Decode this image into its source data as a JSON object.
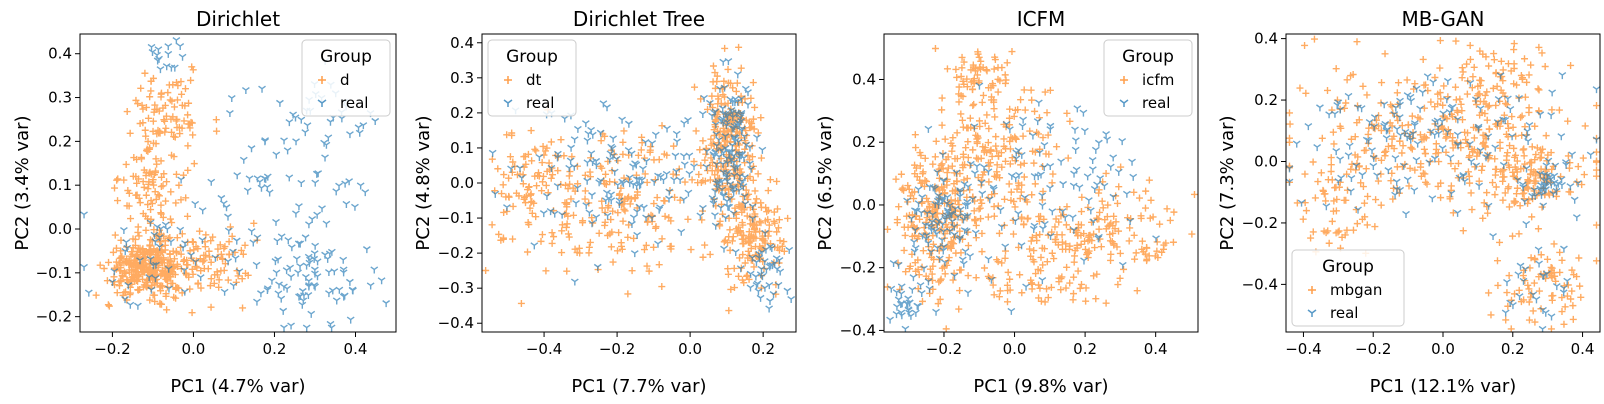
{
  "colors": {
    "synthetic": "#ff7f0e",
    "real": "#1f77b4"
  },
  "chart_data": [
    {
      "type": "scatter",
      "title": "Dirichlet",
      "xlabel": "PC1 (4.7% var)",
      "ylabel": "PC2 (3.4% var)",
      "xlim": [
        -0.28,
        0.5
      ],
      "ylim": [
        -0.235,
        0.445
      ],
      "xticks": [
        -0.2,
        0.0,
        0.2,
        0.4
      ],
      "xtick_labels": [
        "−0.2",
        "0.0",
        "0.2",
        "0.4"
      ],
      "yticks": [
        -0.2,
        -0.1,
        0.0,
        0.1,
        0.2,
        0.3,
        0.4
      ],
      "ytick_labels": [
        "−0.2",
        "−0.1",
        "0.0",
        "0.1",
        "0.2",
        "0.3",
        "0.4"
      ],
      "legend": {
        "title": "Group",
        "location": "upper right",
        "entries": [
          "d",
          "real"
        ]
      },
      "series": [
        {
          "name": "d",
          "marker": "plus",
          "color": "#ff7f0e",
          "clusters": [
            {
              "n": 320,
              "cx": -0.11,
              "cy": -0.09,
              "sx": 0.05,
              "sy": 0.03
            },
            {
              "n": 140,
              "cx": -0.1,
              "cy": 0.12,
              "sx": 0.04,
              "sy": 0.1
            },
            {
              "n": 80,
              "cx": 0.04,
              "cy": -0.07,
              "sx": 0.05,
              "sy": 0.05
            },
            {
              "n": 50,
              "cx": -0.05,
              "cy": 0.27,
              "sx": 0.05,
              "sy": 0.05
            }
          ]
        },
        {
          "name": "real",
          "marker": "tri_down",
          "color": "#1f77b4",
          "clusters": [
            {
              "n": 90,
              "cx": 0.22,
              "cy": 0.05,
              "sx": 0.12,
              "sy": 0.13
            },
            {
              "n": 60,
              "cx": 0.32,
              "cy": -0.12,
              "sx": 0.08,
              "sy": 0.05
            },
            {
              "n": 40,
              "cx": -0.08,
              "cy": -0.06,
              "sx": 0.08,
              "sy": 0.06
            },
            {
              "n": 15,
              "cx": -0.06,
              "cy": 0.4,
              "sx": 0.02,
              "sy": 0.02
            },
            {
              "n": 30,
              "cx": 0.28,
              "cy": 0.25,
              "sx": 0.08,
              "sy": 0.05
            }
          ]
        }
      ]
    },
    {
      "type": "scatter",
      "title": "Dirichlet Tree",
      "xlabel": "PC1 (7.7% var)",
      "ylabel": "PC2 (4.8% var)",
      "xlim": [
        -0.57,
        0.29
      ],
      "ylim": [
        -0.425,
        0.425
      ],
      "xticks": [
        -0.4,
        -0.2,
        0.0,
        0.2
      ],
      "xtick_labels": [
        "−0.4",
        "−0.2",
        "0.0",
        "0.2"
      ],
      "yticks": [
        -0.4,
        -0.3,
        -0.2,
        -0.1,
        0.0,
        0.1,
        0.2,
        0.3,
        0.4
      ],
      "ytick_labels": [
        "−0.4",
        "−0.3",
        "−0.2",
        "−0.1",
        "0.0",
        "0.1",
        "0.2",
        "0.3",
        "0.4"
      ],
      "legend": {
        "title": "Group",
        "location": "upper left",
        "entries": [
          "dt",
          "real"
        ]
      },
      "series": [
        {
          "name": "dt",
          "marker": "plus",
          "color": "#ff7f0e",
          "clusters": [
            {
              "n": 220,
              "cx": 0.11,
              "cy": 0.12,
              "sx": 0.035,
              "sy": 0.1
            },
            {
              "n": 160,
              "cx": 0.17,
              "cy": -0.15,
              "sx": 0.04,
              "sy": 0.08
            },
            {
              "n": 230,
              "cx": -0.2,
              "cy": -0.05,
              "sx": 0.16,
              "sy": 0.1
            },
            {
              "n": 60,
              "cx": -0.45,
              "cy": 0.0,
              "sx": 0.05,
              "sy": 0.07
            }
          ]
        },
        {
          "name": "real",
          "marker": "tri_down",
          "color": "#1f77b4",
          "clusters": [
            {
              "n": 130,
              "cx": 0.11,
              "cy": 0.1,
              "sx": 0.035,
              "sy": 0.1
            },
            {
              "n": 40,
              "cx": 0.2,
              "cy": -0.25,
              "sx": 0.03,
              "sy": 0.05
            },
            {
              "n": 140,
              "cx": -0.2,
              "cy": 0.0,
              "sx": 0.15,
              "sy": 0.1
            }
          ]
        }
      ]
    },
    {
      "type": "scatter",
      "title": "ICFM",
      "xlabel": "PC1 (9.8% var)",
      "ylabel": "PC2 (6.5% var)",
      "xlim": [
        -0.37,
        0.52
      ],
      "ylim": [
        -0.405,
        0.545
      ],
      "xticks": [
        -0.2,
        0.0,
        0.2,
        0.4
      ],
      "xtick_labels": [
        "−0.2",
        "0.0",
        "0.2",
        "0.4"
      ],
      "yticks": [
        -0.4,
        -0.2,
        0.0,
        0.2,
        0.4
      ],
      "ytick_labels": [
        "−0.4",
        "−0.2",
        "0.0",
        "0.2",
        "0.4"
      ],
      "legend": {
        "title": "Group",
        "location": "upper right",
        "entries": [
          "icfm",
          "real"
        ]
      },
      "series": [
        {
          "name": "icfm",
          "marker": "plus",
          "color": "#ff7f0e",
          "clusters": [
            {
              "n": 260,
              "cx": -0.22,
              "cy": -0.05,
              "sx": 0.06,
              "sy": 0.13
            },
            {
              "n": 200,
              "cx": 0.2,
              "cy": -0.1,
              "sx": 0.14,
              "sy": 0.09
            },
            {
              "n": 150,
              "cx": -0.05,
              "cy": 0.2,
              "sx": 0.1,
              "sy": 0.1
            },
            {
              "n": 60,
              "cx": -0.1,
              "cy": 0.4,
              "sx": 0.05,
              "sy": 0.05
            },
            {
              "n": 40,
              "cx": 0.05,
              "cy": -0.25,
              "sx": 0.1,
              "sy": 0.04
            }
          ]
        },
        {
          "name": "real",
          "marker": "tri_down",
          "color": "#1f77b4",
          "clusters": [
            {
              "n": 100,
              "cx": -0.2,
              "cy": -0.05,
              "sx": 0.06,
              "sy": 0.1
            },
            {
              "n": 30,
              "cx": -0.3,
              "cy": -0.3,
              "sx": 0.03,
              "sy": 0.04
            },
            {
              "n": 100,
              "cx": 0.1,
              "cy": 0.05,
              "sx": 0.15,
              "sy": 0.15
            }
          ]
        }
      ]
    },
    {
      "type": "scatter",
      "title": "MB-GAN",
      "xlabel": "PC1 (12.1% var)",
      "ylabel": "PC2 (7.3% var)",
      "xlim": [
        -0.45,
        0.45
      ],
      "ylim": [
        -0.555,
        0.415
      ],
      "xticks": [
        -0.4,
        -0.2,
        0.0,
        0.2,
        0.4
      ],
      "xtick_labels": [
        "−0.4",
        "−0.2",
        "0.0",
        "0.2",
        "0.4"
      ],
      "yticks": [
        -0.4,
        -0.2,
        0.0,
        0.2,
        0.4
      ],
      "ytick_labels": [
        "−0.4",
        "−0.2",
        "0.0",
        "0.2",
        "0.4"
      ],
      "legend": {
        "title": "Group",
        "location": "lower left",
        "entries": [
          "mbgan",
          "real"
        ]
      },
      "series": [
        {
          "name": "mbgan",
          "marker": "plus",
          "color": "#ff7f0e",
          "clusters": [
            {
              "n": 350,
              "cx": 0.0,
              "cy": 0.08,
              "sx": 0.2,
              "sy": 0.12
            },
            {
              "n": 100,
              "cx": 0.25,
              "cy": -0.06,
              "sx": 0.06,
              "sy": 0.05
            },
            {
              "n": 80,
              "cx": 0.28,
              "cy": -0.4,
              "sx": 0.07,
              "sy": 0.08
            },
            {
              "n": 50,
              "cx": -0.3,
              "cy": -0.15,
              "sx": 0.06,
              "sy": 0.08
            },
            {
              "n": 50,
              "cx": 0.15,
              "cy": 0.28,
              "sx": 0.07,
              "sy": 0.06
            }
          ]
        },
        {
          "name": "real",
          "marker": "tri_down",
          "color": "#1f77b4",
          "clusters": [
            {
              "n": 150,
              "cx": 0.0,
              "cy": 0.05,
              "sx": 0.2,
              "sy": 0.12
            },
            {
              "n": 40,
              "cx": 0.3,
              "cy": -0.07,
              "sx": 0.05,
              "sy": 0.03
            },
            {
              "n": 25,
              "cx": 0.28,
              "cy": -0.42,
              "sx": 0.06,
              "sy": 0.07
            }
          ]
        }
      ]
    }
  ]
}
